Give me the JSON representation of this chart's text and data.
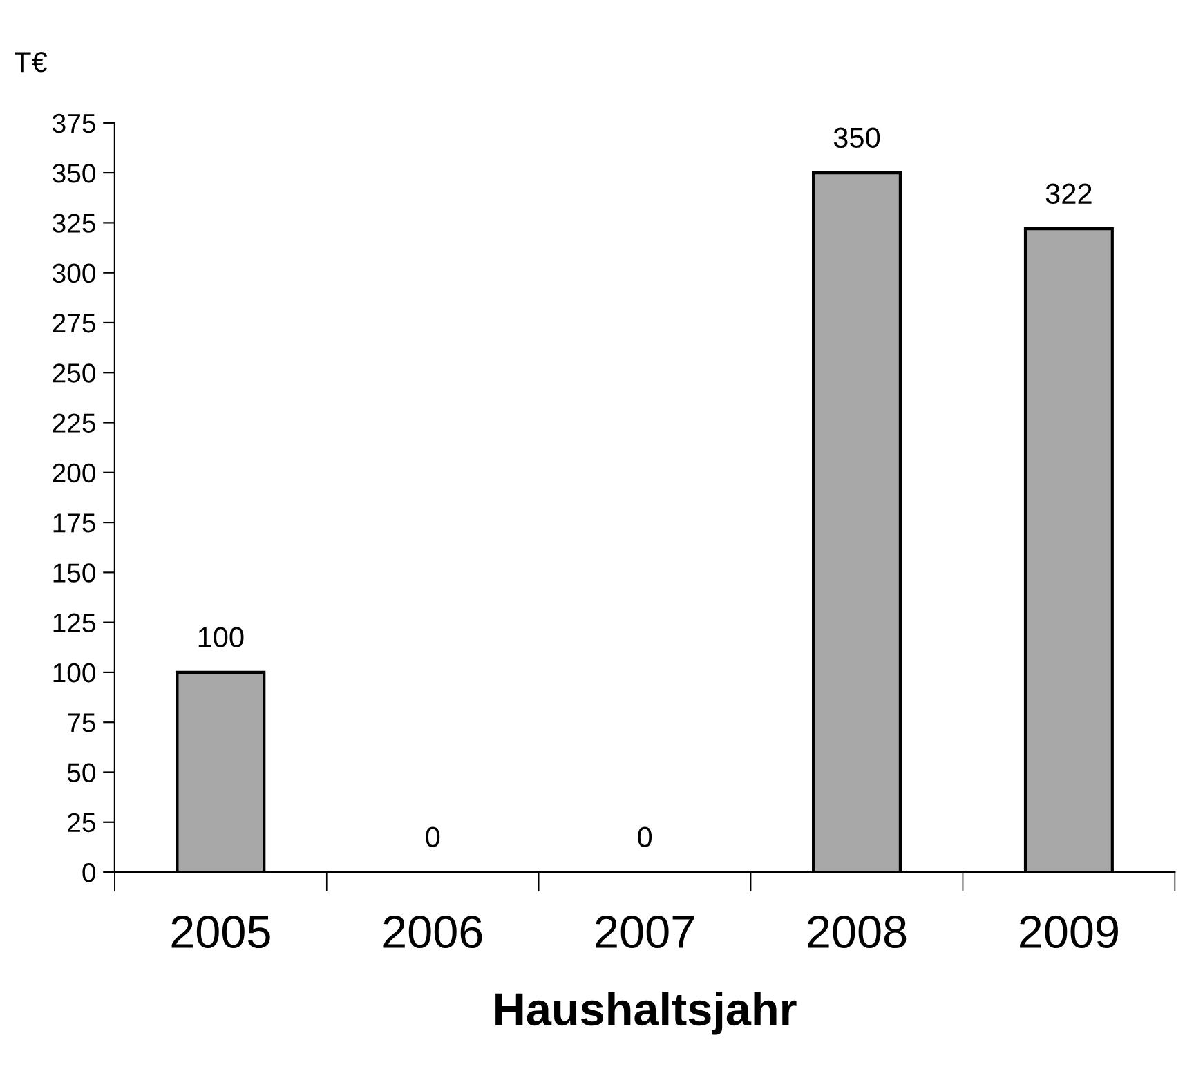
{
  "chart_data": {
    "type": "bar",
    "ylabel": "T€",
    "xlabel": "Haushaltsjahr",
    "categories": [
      "2005",
      "2006",
      "2007",
      "2008",
      "2009"
    ],
    "values": [
      100,
      0,
      0,
      350,
      322
    ],
    "color": "#a8a8a8",
    "ylim": [
      0,
      375
    ],
    "yticks": [
      0,
      25,
      50,
      75,
      100,
      125,
      150,
      175,
      200,
      225,
      250,
      275,
      300,
      325,
      350,
      375
    ],
    "data_labels": true,
    "grid": false,
    "legend": false
  }
}
